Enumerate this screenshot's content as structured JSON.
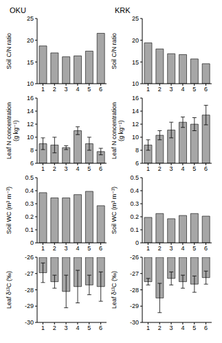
{
  "chart_data": [
    {
      "type": "bar",
      "title": "OKU",
      "y_label": "Soil C/N ratio",
      "categories": [
        "1",
        "2",
        "3",
        "4",
        "5",
        "6"
      ],
      "values": [
        18.7,
        17.1,
        16.2,
        16.4,
        17.5,
        21.6
      ],
      "color": "#a6a6a6",
      "ylim": [
        10,
        25
      ],
      "yticks": [
        10,
        15,
        20,
        25
      ],
      "grid": false
    },
    {
      "type": "bar",
      "title": "KRK",
      "y_label": "Soil C/N ratio",
      "categories": [
        "1",
        "2",
        "3",
        "4",
        "5",
        "6"
      ],
      "values": [
        19.4,
        18.0,
        16.9,
        16.7,
        15.7,
        14.6
      ],
      "color": "#a6a6a6",
      "ylim": [
        10,
        25
      ],
      "yticks": [
        10,
        15,
        20,
        25
      ],
      "grid": false
    },
    {
      "type": "bar",
      "y_label": "Leaf N concentration (g kg⁻¹)",
      "categories": [
        "1",
        "2",
        "3",
        "4",
        "5",
        "6"
      ],
      "values": [
        9.0,
        8.8,
        8.4,
        11.0,
        9.0,
        7.8
      ],
      "errors": [
        0.9,
        1.2,
        0.3,
        0.6,
        1.0,
        0.5
      ],
      "color": "#a6a6a6",
      "ylim": [
        6,
        16
      ],
      "yticks": [
        6,
        8,
        10,
        12,
        14,
        16
      ],
      "grid": false
    },
    {
      "type": "bar",
      "y_label": "Leaf N concentration (g kg⁻¹)",
      "categories": [
        "1",
        "2",
        "3",
        "4",
        "5",
        "6"
      ],
      "values": [
        8.8,
        10.3,
        11.1,
        12.3,
        12.0,
        13.4
      ],
      "errors": [
        0.8,
        0.7,
        1.2,
        0.8,
        1.0,
        1.5
      ],
      "color": "#a6a6a6",
      "ylim": [
        6,
        16
      ],
      "yticks": [
        6,
        8,
        10,
        12,
        14,
        16
      ],
      "grid": false
    },
    {
      "type": "bar",
      "y_label": "Soil WC (m³ m⁻³)",
      "categories": [
        "1",
        "2",
        "3",
        "4",
        "5",
        "6"
      ],
      "values": [
        0.385,
        0.345,
        0.345,
        0.37,
        0.395,
        0.285
      ],
      "color": "#a6a6a6",
      "ylim": [
        0,
        0.5
      ],
      "yticks": [
        0,
        0.1,
        0.2,
        0.3,
        0.4,
        0.5
      ],
      "grid": false
    },
    {
      "type": "bar",
      "y_label": "Soil WC (m³ m⁻³)",
      "categories": [
        "1",
        "2",
        "3",
        "4",
        "5",
        "6"
      ],
      "values": [
        0.195,
        0.225,
        0.185,
        0.21,
        0.225,
        0.205
      ],
      "color": "#a6a6a6",
      "ylim": [
        0,
        0.5
      ],
      "yticks": [
        0,
        0.1,
        0.2,
        0.3,
        0.4,
        0.5
      ],
      "grid": false
    },
    {
      "type": "bar",
      "y_label": "Leaf δ¹³C (‰)",
      "categories": [
        "1",
        "2",
        "3",
        "4",
        "5",
        "6"
      ],
      "values": [
        -26.95,
        -27.5,
        -28.1,
        -27.8,
        -27.7,
        -27.8
      ],
      "errors": [
        0.6,
        0.4,
        1.0,
        1.0,
        0.6,
        0.9
      ],
      "color": "#a6a6a6",
      "ylim": [
        -30,
        -26
      ],
      "yticks": [
        -30,
        -29,
        -28,
        -27,
        -26
      ],
      "grid": false
    },
    {
      "type": "bar",
      "y_label": "Leaf δ¹³C (‰)",
      "categories": [
        "1",
        "2",
        "3",
        "4",
        "5",
        "6"
      ],
      "values": [
        -27.5,
        -28.5,
        -27.3,
        -27.5,
        -27.65,
        -27.25
      ],
      "errors": [
        0.2,
        0.9,
        0.4,
        0.4,
        0.5,
        0.4
      ],
      "color": "#a6a6a6",
      "ylim": [
        -30,
        -26
      ],
      "yticks": [
        -30,
        -29,
        -28,
        -27,
        -26
      ],
      "grid": false
    }
  ]
}
